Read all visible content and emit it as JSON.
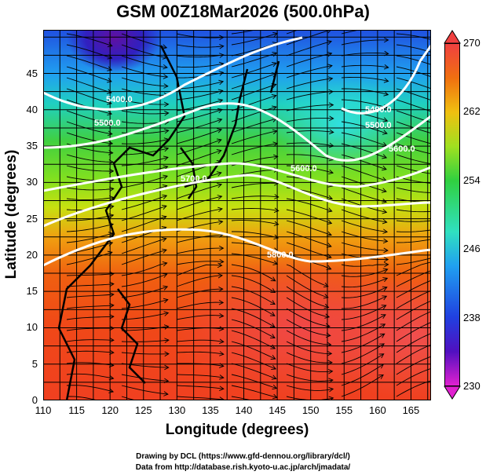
{
  "chart_data": {
    "type": "heatmap",
    "title": "GSM 00Z18Mar2026 (500.0hPa)",
    "xlabel": "Longitude (degrees)",
    "ylabel": "Latitude  (degrees)",
    "xlim": [
      110,
      168
    ],
    "ylim": [
      0,
      51
    ],
    "x_ticks": [
      "110",
      "115",
      "120",
      "125",
      "130",
      "135",
      "140",
      "145",
      "150",
      "155",
      "160",
      "165"
    ],
    "y_ticks": [
      "0",
      "5",
      "10",
      "15",
      "20",
      "25",
      "30",
      "35",
      "40",
      "45"
    ],
    "colorbar": {
      "label_ticks": [
        "270",
        "262",
        "254",
        "246",
        "238",
        "230"
      ],
      "range": [
        230,
        270
      ]
    },
    "contour_labels": [
      "5400.0",
      "5500.0",
      "5600.0",
      "5700.0",
      "5800.0",
      "5600.0",
      "5500.0",
      "5400.0"
    ],
    "overlay": "streamlines (wind)",
    "grid": true
  },
  "credits": {
    "line1": "Drawing by DCL (https://www.gfd-dennou.org/library/dcl/)",
    "line2": "Data from http://database.rish.kyoto-u.ac.jp/arch/jmadata/"
  }
}
